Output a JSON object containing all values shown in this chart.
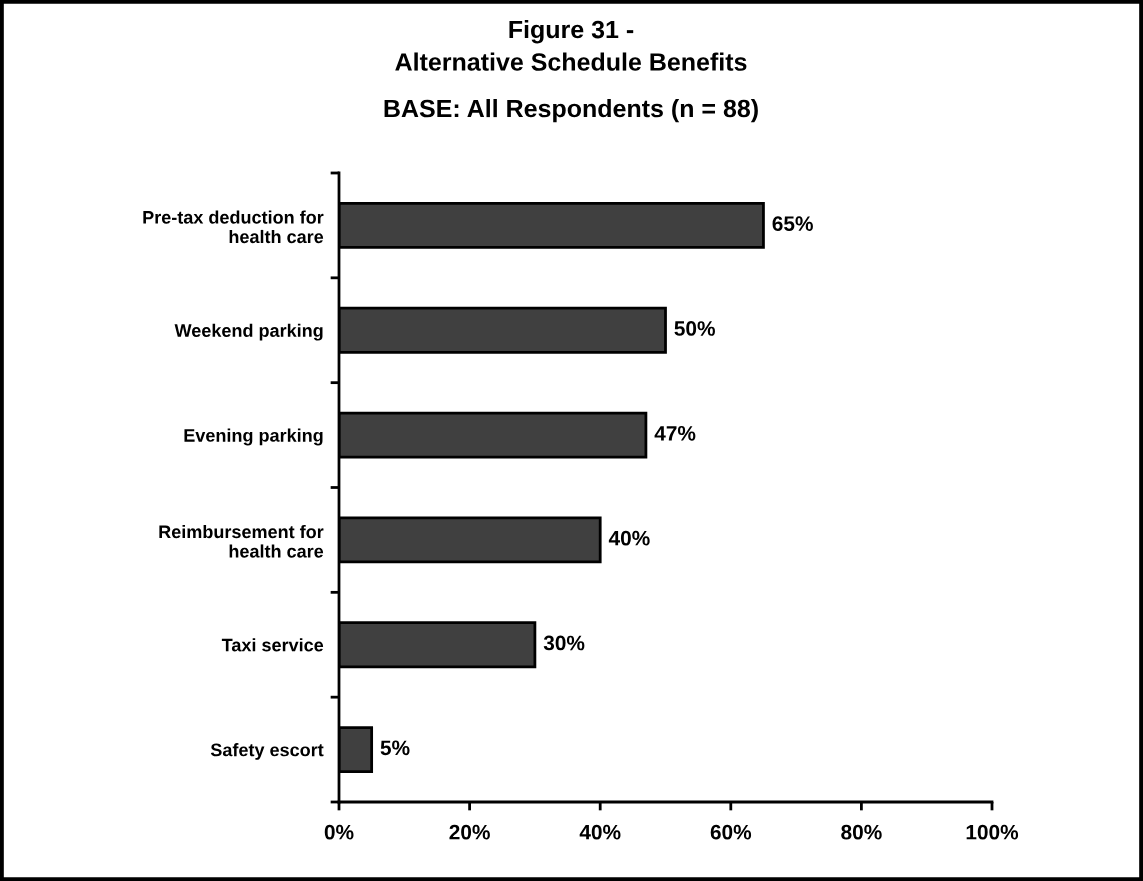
{
  "chart_data": {
    "type": "bar",
    "orientation": "horizontal",
    "title": "Figure 31 -\nAlternative Schedule Benefits",
    "subtitle": "BASE: All Respondents (n = 88)",
    "categories": [
      "Pre-tax deduction for\nhealth care",
      "Weekend parking",
      "Evening parking",
      "Reimbursement for\nhealth care",
      "Taxi service",
      "Safety escort"
    ],
    "values": [
      65,
      50,
      47,
      40,
      30,
      5
    ],
    "color": "#404040",
    "value_labels": [
      "65%",
      "50%",
      "47%",
      "40%",
      "30%",
      "5%"
    ],
    "xlim": [
      0,
      100
    ],
    "xticks": [
      {
        "value": 0,
        "label": "0%"
      },
      {
        "value": 20,
        "label": "20%"
      },
      {
        "value": 40,
        "label": "40%"
      },
      {
        "value": 60,
        "label": "60%"
      },
      {
        "value": 80,
        "label": "80%"
      },
      {
        "value": 100,
        "label": "100%"
      }
    ],
    "grid": false,
    "legend": false
  }
}
